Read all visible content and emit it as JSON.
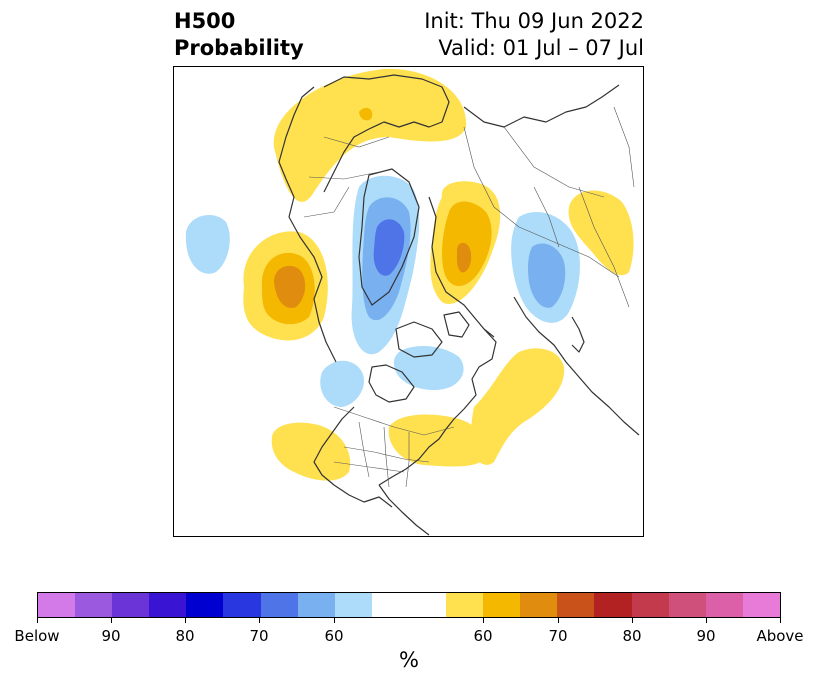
{
  "title": {
    "left_line1": "H500",
    "left_line2": "Probability",
    "right_line1": "Init: Thu 09 Jun 2022",
    "right_line2": "Valid: 01 Jul – 07 Jul"
  },
  "colorbar": {
    "unit": "%",
    "below_colors": [
      "#d47ae8",
      "#9b59e0",
      "#6b34d6",
      "#3914d2",
      "#0000d0",
      "#2837e0",
      "#4e74e8",
      "#78b0f0",
      "#acdcf9"
    ],
    "neutral_color": "#ffffff",
    "above_colors": [
      "#ffe04f",
      "#f5b800",
      "#e08c0e",
      "#c8521a",
      "#b22222",
      "#c43a4d",
      "#d0507c",
      "#dc60a8",
      "#e87ad8"
    ],
    "tick_labels": [
      "Below",
      "90",
      "80",
      "70",
      "60",
      "60",
      "70",
      "80",
      "90",
      "Above"
    ]
  },
  "map": {
    "projection": "north-polar-stereographic",
    "colors": {
      "land_outline": "#333333",
      "below_60": "#acdcf9",
      "below_70": "#78b0f0",
      "below_80": "#4e74e8",
      "above_60": "#ffe04f",
      "above_70": "#f5b800",
      "above_80": "#e08c0e"
    }
  }
}
